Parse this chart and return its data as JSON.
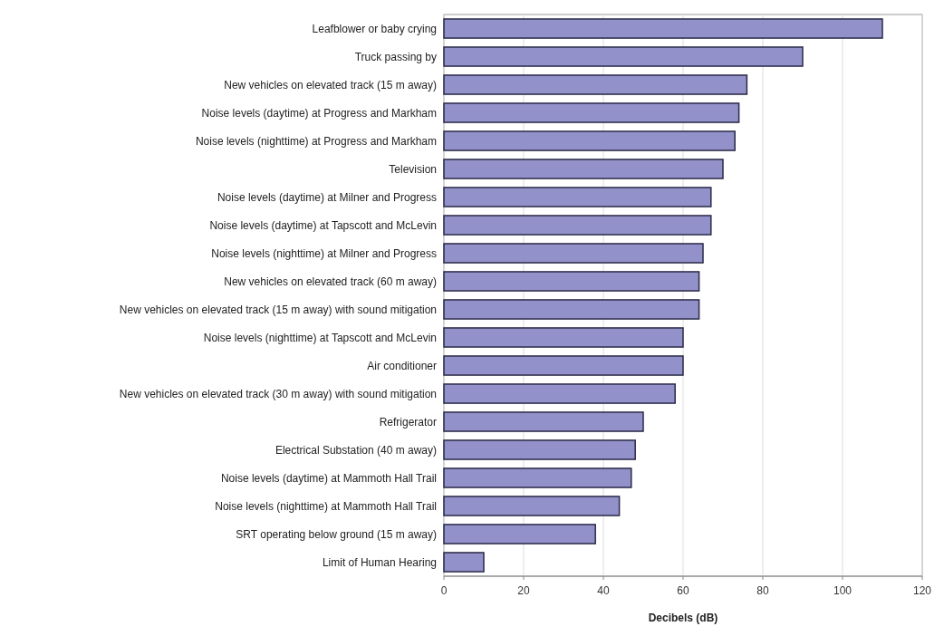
{
  "chart_data": {
    "type": "bar",
    "orientation": "horizontal",
    "xlabel": "Decibels (dB)",
    "categories": [
      "Leafblower or baby crying",
      "Truck passing by",
      "New vehicles on elevated track (15 m away)",
      "Noise levels (daytime) at Progress and Markham",
      "Noise levels (nighttime) at Progress and Markham",
      "Television",
      "Noise levels (daytime) at Milner and Progress",
      "Noise levels (daytime) at Tapscott and McLevin",
      "Noise levels (nighttime) at Milner and Progress",
      "New vehicles on elevated track (60 m away)",
      "New vehicles on elevated track (15 m away) with sound mitigation",
      "Noise levels (nighttime) at Tapscott and McLevin",
      "Air conditioner",
      "New vehicles on elevated track (30 m away) with sound mitigation",
      "Refrigerator",
      "Electrical Substation (40 m away)",
      "Noise levels (daytime) at Mammoth Hall Trail",
      "Noise levels (nighttime) at Mammoth Hall Trail",
      "SRT operating below ground (15 m away)",
      "Limit of Human Hearing"
    ],
    "values": [
      110,
      90,
      76,
      74,
      73,
      70,
      67,
      67,
      65,
      64,
      64,
      60,
      60,
      58,
      50,
      48,
      47,
      44,
      38,
      10
    ],
    "color": "#9391c9",
    "xlim": [
      0,
      120
    ],
    "xticks": [
      0,
      20,
      40,
      60,
      80,
      100,
      120
    ],
    "grid": "x"
  }
}
